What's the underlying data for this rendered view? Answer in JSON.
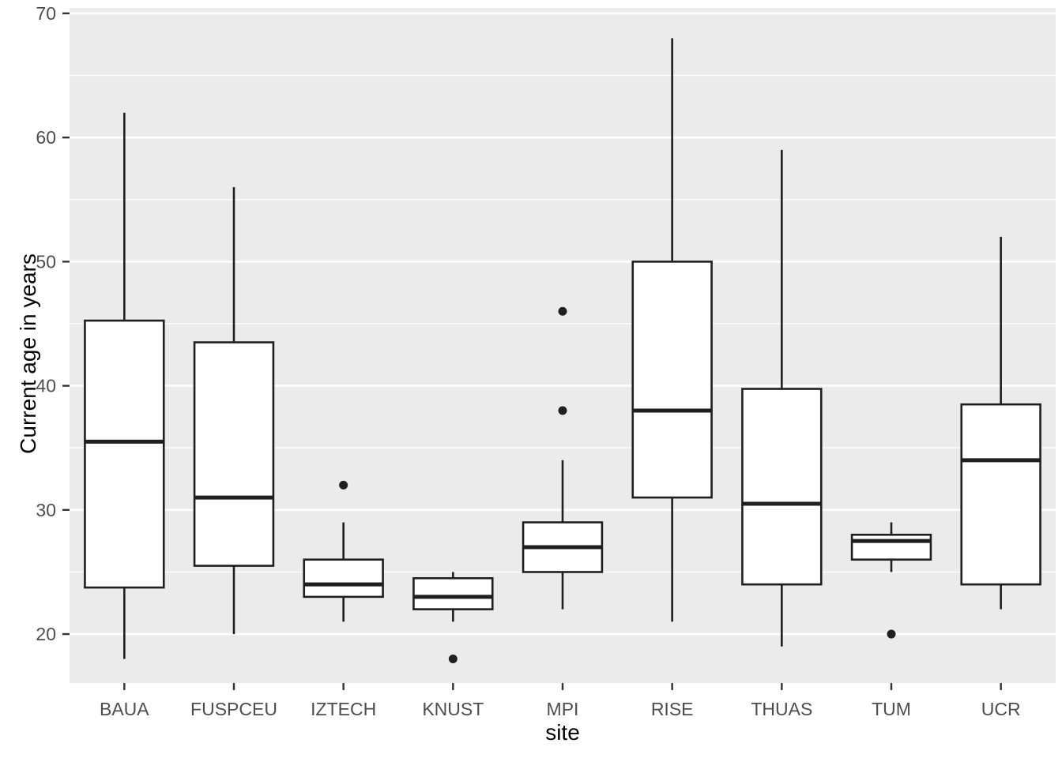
{
  "figure": {
    "background": "#FFFFFF",
    "panel_background": "#EBEBEB",
    "gridline_color": "#FFFFFF",
    "box_fill": "#FFFFFF",
    "box_stroke": "#1F1F1F",
    "outlier_color": "#1F1F1F",
    "tick_mark_color": "#333333",
    "tick_label_color": "#4D4D4D",
    "axis_title_color": "#000000"
  },
  "chart_data": {
    "type": "boxplot",
    "title": "",
    "xlabel": "site",
    "ylabel": "Current age in years",
    "grid": "on",
    "legend": "none",
    "categories": [
      "BAUA",
      "FUSPCEU",
      "IZTECH",
      "KNUST",
      "MPI",
      "RISE",
      "THUAS",
      "TUM",
      "UCR"
    ],
    "y_ticks": [
      20,
      30,
      40,
      50,
      60,
      70
    ],
    "y_minor_ticks": [
      25,
      35,
      45,
      55,
      65
    ],
    "ylim": [
      16.06,
      70.44
    ],
    "boxes": [
      {
        "site": "BAUA",
        "whisker_low": 18,
        "q1": 23.75,
        "median": 35.5,
        "q3": 45.25,
        "whisker_high": 62,
        "outliers": []
      },
      {
        "site": "FUSPCEU",
        "whisker_low": 20,
        "q1": 25.5,
        "median": 31,
        "q3": 43.5,
        "whisker_high": 56,
        "outliers": []
      },
      {
        "site": "IZTECH",
        "whisker_low": 21,
        "q1": 23,
        "median": 24,
        "q3": 26,
        "whisker_high": 29,
        "outliers": [
          32
        ]
      },
      {
        "site": "KNUST",
        "whisker_low": 21,
        "q1": 22,
        "median": 23,
        "q3": 24.5,
        "whisker_high": 25,
        "outliers": [
          18
        ]
      },
      {
        "site": "MPI",
        "whisker_low": 22,
        "q1": 25,
        "median": 27,
        "q3": 29,
        "whisker_high": 34,
        "outliers": [
          38,
          46
        ]
      },
      {
        "site": "RISE",
        "whisker_low": 21,
        "q1": 31,
        "median": 38,
        "q3": 50,
        "whisker_high": 68,
        "outliers": []
      },
      {
        "site": "THUAS",
        "whisker_low": 19,
        "q1": 24,
        "median": 30.5,
        "q3": 39.75,
        "whisker_high": 59,
        "outliers": []
      },
      {
        "site": "TUM",
        "whisker_low": 25,
        "q1": 26,
        "median": 27.5,
        "q3": 28,
        "whisker_high": 29,
        "outliers": [
          20
        ]
      },
      {
        "site": "UCR",
        "whisker_low": 22,
        "q1": 24,
        "median": 34,
        "q3": 38.5,
        "whisker_high": 52,
        "outliers": []
      }
    ]
  }
}
